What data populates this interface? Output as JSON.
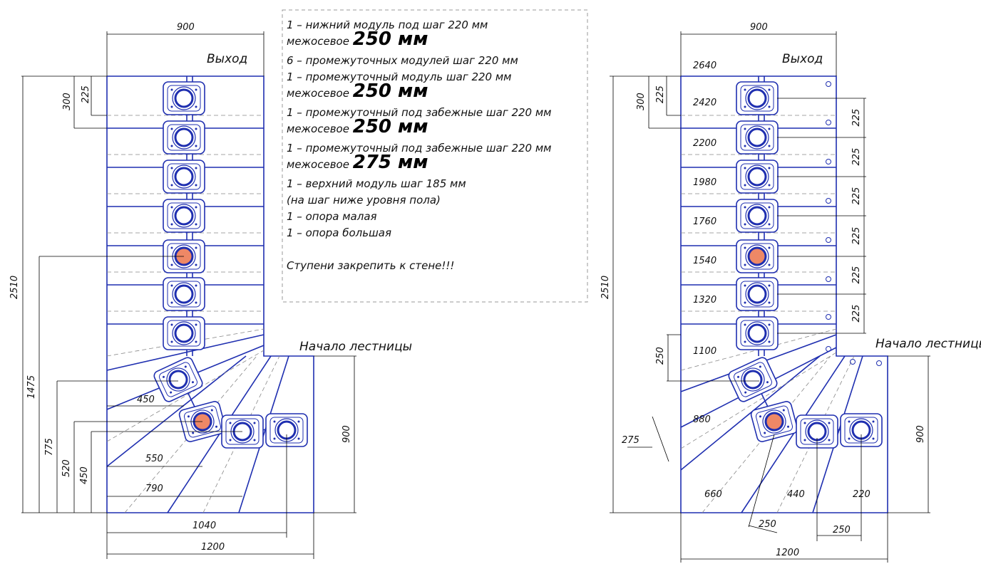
{
  "notes": [
    {
      "text": "1 – нижний модуль под шаг 220 мм",
      "big": false
    },
    {
      "text": "межосевое ",
      "bigtext": "250 мм"
    },
    {
      "text": "6 – промежуточных модулей шаг 220 мм",
      "big": false
    },
    {
      "text": "1 – промежуточный модуль шаг 220 мм",
      "big": false
    },
    {
      "text": "межосевое ",
      "bigtext": "250 мм"
    },
    {
      "text": "1 – промежуточный под забежные шаг 220 мм",
      "big": false
    },
    {
      "text": "межосевое ",
      "bigtext": "250 мм"
    },
    {
      "text": "1 – промежуточный  под забежные шаг 220 мм",
      "big": false
    },
    {
      "text": "межосевое ",
      "bigtext": "275 мм"
    },
    {
      "text": "1 – верхний модуль шаг 185 мм",
      "big": false
    },
    {
      "text": "(на шаг ниже уровня пола)",
      "big": false
    },
    {
      "text": "1 – опора малая",
      "big": false
    },
    {
      "text": "1 – опора большая",
      "big": false
    },
    {
      "text": "",
      "big": false
    },
    {
      "text": "Ступени закрепить к стене!!!",
      "big": false
    }
  ],
  "labels": {
    "exit_left": "Выход",
    "exit_right": "Выход",
    "start_left": "Начало лестницы",
    "start_right": "Начало лестницы"
  },
  "left_dims": {
    "top_width": "900",
    "h300": "300",
    "h225": "225",
    "total": "2510",
    "h1475": "1475",
    "h775": "775",
    "h520": "520",
    "h450v": "450",
    "w450": "450",
    "w550": "550",
    "w790": "790",
    "w1040": "1040",
    "w1200": "1200",
    "h900": "900"
  },
  "right_dims": {
    "top_width": "900",
    "h300": "300",
    "h225": "225",
    "total": "2510",
    "step225": "225",
    "h250": "250",
    "d275": "275",
    "h900": "900",
    "w250a": "250",
    "w250b": "250",
    "w1200": "1200",
    "levels": [
      "2640",
      "2420",
      "2200",
      "1980",
      "1760",
      "1540",
      "1320",
      "1100",
      "880",
      "660",
      "440",
      "220"
    ]
  },
  "colors": {
    "line": "#1f2fb0",
    "support": "#ee8866"
  }
}
